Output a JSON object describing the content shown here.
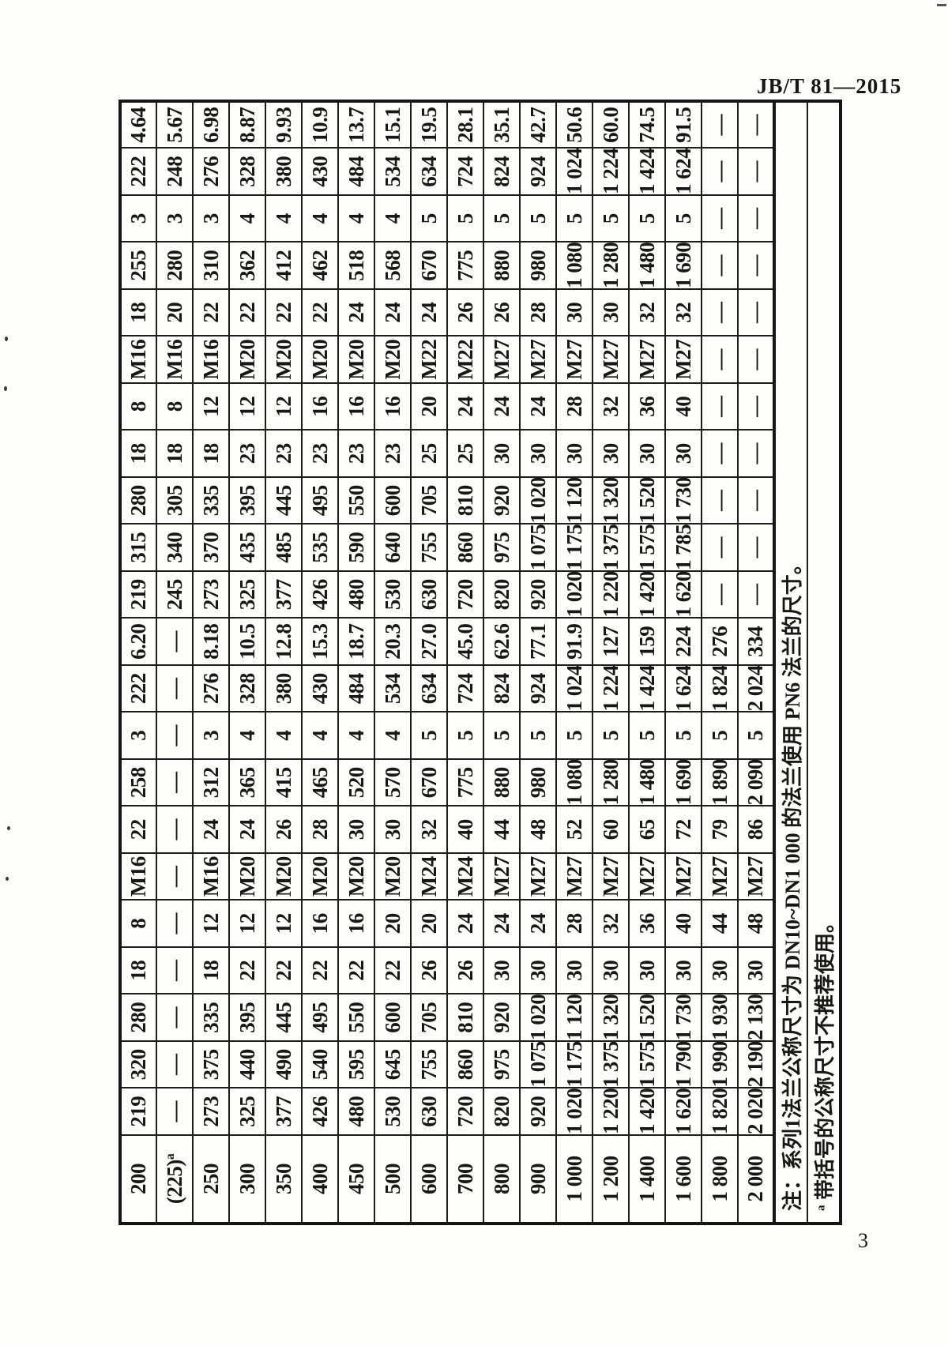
{
  "page": {
    "standard_code": "JB/T 81—2015",
    "page_number": "3"
  },
  "notes": {
    "note1": "注：系列1法兰公称尺寸为 DN10~DN1 000 的法兰使用 PN6 法兰的尺寸。",
    "note2_sup": "a",
    "note2": "带括号的公称尺寸不推荐使用。"
  },
  "table": {
    "rows": [
      {
        "dn": "200",
        "dn_sup": "",
        "s1": [
          "219",
          "320",
          "280",
          "18",
          "8",
          "M16",
          "22",
          "258",
          "3",
          "222",
          "6.20"
        ],
        "s2": [
          "219",
          "315",
          "280",
          "18",
          "8",
          "M16",
          "18",
          "255",
          "3",
          "222",
          "4.64"
        ]
      },
      {
        "dn": "(225)",
        "dn_sup": "a",
        "s1": [
          "—",
          "—",
          "—",
          "—",
          "—",
          "—",
          "—",
          "—",
          "—",
          "—",
          "—"
        ],
        "s2": [
          "245",
          "340",
          "305",
          "18",
          "8",
          "M16",
          "20",
          "280",
          "3",
          "248",
          "5.67"
        ]
      },
      {
        "dn": "250",
        "dn_sup": "",
        "s1": [
          "273",
          "375",
          "335",
          "18",
          "12",
          "M16",
          "24",
          "312",
          "3",
          "276",
          "8.18"
        ],
        "s2": [
          "273",
          "370",
          "335",
          "18",
          "12",
          "M16",
          "22",
          "310",
          "3",
          "276",
          "6.98"
        ]
      },
      {
        "dn": "300",
        "dn_sup": "",
        "s1": [
          "325",
          "440",
          "395",
          "22",
          "12",
          "M20",
          "24",
          "365",
          "4",
          "328",
          "10.5"
        ],
        "s2": [
          "325",
          "435",
          "395",
          "23",
          "12",
          "M20",
          "22",
          "362",
          "4",
          "328",
          "8.87"
        ]
      },
      {
        "dn": "350",
        "dn_sup": "",
        "s1": [
          "377",
          "490",
          "445",
          "22",
          "12",
          "M20",
          "26",
          "415",
          "4",
          "380",
          "12.8"
        ],
        "s2": [
          "377",
          "485",
          "445",
          "23",
          "12",
          "M20",
          "22",
          "412",
          "4",
          "380",
          "9.93"
        ]
      },
      {
        "dn": "400",
        "dn_sup": "",
        "s1": [
          "426",
          "540",
          "495",
          "22",
          "16",
          "M20",
          "28",
          "465",
          "4",
          "430",
          "15.3"
        ],
        "s2": [
          "426",
          "535",
          "495",
          "23",
          "16",
          "M20",
          "22",
          "462",
          "4",
          "430",
          "10.9"
        ]
      },
      {
        "dn": "450",
        "dn_sup": "",
        "s1": [
          "480",
          "595",
          "550",
          "22",
          "16",
          "M20",
          "30",
          "520",
          "4",
          "484",
          "18.7"
        ],
        "s2": [
          "480",
          "590",
          "550",
          "23",
          "16",
          "M20",
          "24",
          "518",
          "4",
          "484",
          "13.7"
        ]
      },
      {
        "dn": "500",
        "dn_sup": "",
        "s1": [
          "530",
          "645",
          "600",
          "22",
          "20",
          "M20",
          "30",
          "570",
          "4",
          "534",
          "20.3"
        ],
        "s2": [
          "530",
          "640",
          "600",
          "23",
          "16",
          "M20",
          "24",
          "568",
          "4",
          "534",
          "15.1"
        ]
      },
      {
        "dn": "600",
        "dn_sup": "",
        "s1": [
          "630",
          "755",
          "705",
          "26",
          "20",
          "M24",
          "32",
          "670",
          "5",
          "634",
          "27.0"
        ],
        "s2": [
          "630",
          "755",
          "705",
          "25",
          "20",
          "M22",
          "24",
          "670",
          "5",
          "634",
          "19.5"
        ]
      },
      {
        "dn": "700",
        "dn_sup": "",
        "s1": [
          "720",
          "860",
          "810",
          "26",
          "24",
          "M24",
          "40",
          "775",
          "5",
          "724",
          "45.0"
        ],
        "s2": [
          "720",
          "860",
          "810",
          "25",
          "24",
          "M22",
          "26",
          "775",
          "5",
          "724",
          "28.1"
        ]
      },
      {
        "dn": "800",
        "dn_sup": "",
        "s1": [
          "820",
          "975",
          "920",
          "30",
          "24",
          "M27",
          "44",
          "880",
          "5",
          "824",
          "62.6"
        ],
        "s2": [
          "820",
          "975",
          "920",
          "30",
          "24",
          "M27",
          "26",
          "880",
          "5",
          "824",
          "35.1"
        ]
      },
      {
        "dn": "900",
        "dn_sup": "",
        "s1": [
          "920",
          "1 075",
          "1 020",
          "30",
          "24",
          "M27",
          "48",
          "980",
          "5",
          "924",
          "77.1"
        ],
        "s2": [
          "920",
          "1 075",
          "1 020",
          "30",
          "24",
          "M27",
          "28",
          "980",
          "5",
          "924",
          "42.7"
        ]
      },
      {
        "dn": "1 000",
        "dn_sup": "",
        "s1": [
          "1 020",
          "1 175",
          "1 120",
          "30",
          "28",
          "M27",
          "52",
          "1 080",
          "5",
          "1 024",
          "91.9"
        ],
        "s2": [
          "1 020",
          "1 175",
          "1 120",
          "30",
          "28",
          "M27",
          "30",
          "1 080",
          "5",
          "1 024",
          "50.6"
        ]
      },
      {
        "dn": "1 200",
        "dn_sup": "",
        "s1": [
          "1 220",
          "1 375",
          "1 320",
          "30",
          "32",
          "M27",
          "60",
          "1 280",
          "5",
          "1 224",
          "127"
        ],
        "s2": [
          "1 220",
          "1 375",
          "1 320",
          "30",
          "32",
          "M27",
          "30",
          "1 280",
          "5",
          "1 224",
          "60.0"
        ]
      },
      {
        "dn": "1 400",
        "dn_sup": "",
        "s1": [
          "1 420",
          "1 575",
          "1 520",
          "30",
          "36",
          "M27",
          "65",
          "1 480",
          "5",
          "1 424",
          "159"
        ],
        "s2": [
          "1 420",
          "1 575",
          "1 520",
          "30",
          "36",
          "M27",
          "32",
          "1 480",
          "5",
          "1 424",
          "74.5"
        ]
      },
      {
        "dn": "1 600",
        "dn_sup": "",
        "s1": [
          "1 620",
          "1 790",
          "1 730",
          "30",
          "40",
          "M27",
          "72",
          "1 690",
          "5",
          "1 624",
          "224"
        ],
        "s2": [
          "1 620",
          "1 785",
          "1 730",
          "30",
          "40",
          "M27",
          "32",
          "1 690",
          "5",
          "1 624",
          "91.5"
        ]
      },
      {
        "dn": "1 800",
        "dn_sup": "",
        "s1": [
          "1 820",
          "1 990",
          "1 930",
          "30",
          "44",
          "M27",
          "79",
          "1 890",
          "5",
          "1 824",
          "276"
        ],
        "s2": [
          "—",
          "—",
          "—",
          "—",
          "—",
          "—",
          "—",
          "—",
          "—",
          "—",
          "—"
        ]
      },
      {
        "dn": "2 000",
        "dn_sup": "",
        "s1": [
          "2 020",
          "2 190",
          "2 130",
          "30",
          "48",
          "M27",
          "86",
          "2 090",
          "5",
          "2 024",
          "334"
        ],
        "s2": [
          "—",
          "—",
          "—",
          "—",
          "—",
          "—",
          "—",
          "—",
          "—",
          "—",
          "—"
        ]
      }
    ]
  }
}
